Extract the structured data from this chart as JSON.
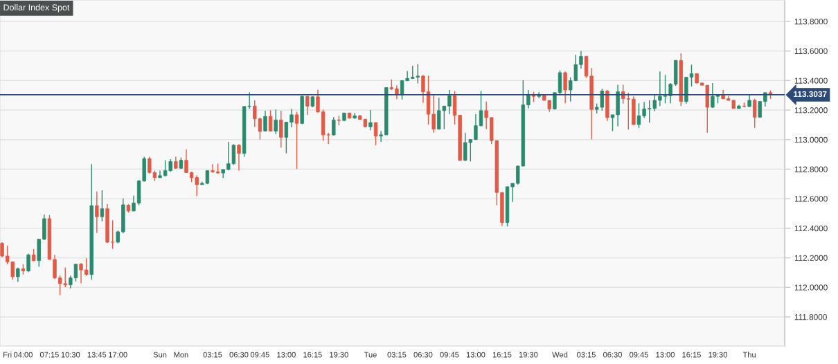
{
  "chart_data": {
    "type": "candlestick",
    "title": "Dollar Index Spot",
    "categories": [
      null,
      "Fri",
      null,
      null,
      "04:00",
      null,
      null,
      null,
      null,
      "07:15",
      null,
      null,
      null,
      "10:30",
      null,
      null,
      null,
      null,
      "13:45",
      null,
      null,
      null,
      "17:00",
      null,
      null,
      null,
      null,
      null,
      null,
      null,
      "Sun",
      null,
      null,
      null,
      "Mon",
      null,
      null,
      null,
      null,
      null,
      "03:15",
      null,
      null,
      null,
      null,
      "06:30",
      null,
      null,
      null,
      "09:45",
      null,
      null,
      null,
      null,
      "13:00",
      null,
      null,
      null,
      null,
      "16:15",
      null,
      null,
      null,
      null,
      "19:30",
      null,
      null,
      null,
      null,
      null,
      "Tue",
      null,
      null,
      null,
      null,
      "03:15",
      null,
      null,
      null,
      null,
      "06:30",
      null,
      null,
      null,
      null,
      "09:45",
      null,
      null,
      null,
      null,
      "13:00",
      null,
      null,
      null,
      null,
      "16:15",
      null,
      null,
      null,
      null,
      "19:30",
      null,
      null,
      null,
      null,
      null,
      "Wed",
      null,
      null,
      null,
      null,
      "03:15",
      null,
      null,
      null,
      null,
      "06:30",
      null,
      null,
      null,
      null,
      "09:45",
      null,
      null,
      null,
      null,
      "13:00",
      null,
      null,
      null,
      null,
      "16:15",
      null,
      null,
      null,
      null,
      "19:30",
      null,
      null,
      null,
      null,
      null,
      "Thu",
      null,
      null,
      null,
      null
    ],
    "ohlc": [
      [
        112.298,
        112.306,
        112.204,
        112.212
      ],
      [
        112.212,
        112.282,
        112.157,
        112.173
      ],
      [
        112.173,
        112.173,
        112.053,
        112.072
      ],
      [
        112.072,
        112.134,
        112.037,
        112.126
      ],
      [
        112.126,
        112.157,
        112.087,
        112.111
      ],
      [
        112.111,
        112.228,
        112.103,
        112.22
      ],
      [
        112.22,
        112.259,
        112.178,
        112.181
      ],
      [
        112.181,
        112.326,
        112.139,
        112.326
      ],
      [
        112.326,
        112.493,
        112.32,
        112.465
      ],
      [
        112.465,
        112.489,
        112.189,
        112.189
      ],
      [
        112.189,
        112.22,
        112.056,
        112.064
      ],
      [
        112.064,
        112.08,
        111.947,
        112.025
      ],
      [
        112.025,
        112.134,
        112.001,
        112.017
      ],
      [
        112.017,
        112.08,
        111.993,
        112.064
      ],
      [
        112.064,
        112.157,
        112.04,
        112.157
      ],
      [
        112.157,
        112.165,
        112.028,
        112.118
      ],
      [
        112.118,
        112.197,
        112.08,
        112.087
      ],
      [
        112.087,
        112.834,
        112.053,
        112.553
      ],
      [
        112.553,
        112.649,
        112.368,
        112.478
      ],
      [
        112.478,
        112.657,
        112.446,
        112.532
      ],
      [
        112.532,
        112.563,
        112.3,
        112.306
      ],
      [
        112.306,
        112.454,
        112.262,
        112.306
      ],
      [
        112.306,
        112.384,
        112.298,
        112.376
      ],
      [
        112.376,
        112.602,
        112.365,
        112.559
      ],
      [
        112.556,
        112.563,
        112.506,
        112.517
      ],
      [
        112.517,
        112.621,
        112.515,
        112.571
      ],
      [
        112.571,
        112.727,
        112.556,
        112.72
      ],
      [
        112.72,
        112.884,
        112.715,
        112.871
      ],
      [
        112.871,
        112.884,
        112.771,
        112.777
      ],
      [
        112.777,
        112.79,
        112.72,
        112.743
      ],
      [
        112.743,
        112.79,
        112.74,
        112.756
      ],
      [
        112.756,
        112.86,
        112.751,
        112.79
      ],
      [
        112.79,
        112.868,
        112.782,
        112.852
      ],
      [
        112.852,
        112.884,
        112.802,
        112.806
      ],
      [
        112.806,
        112.879,
        112.802,
        112.86
      ],
      [
        112.86,
        112.935,
        112.774,
        112.777
      ],
      [
        112.777,
        112.782,
        112.712,
        112.743
      ],
      [
        112.743,
        112.759,
        112.618,
        112.696
      ],
      [
        112.696,
        112.715,
        112.693,
        112.704
      ],
      [
        112.704,
        112.79,
        112.699,
        112.79
      ],
      [
        112.79,
        112.834,
        112.777,
        112.782
      ],
      [
        112.782,
        112.837,
        112.771,
        112.774
      ],
      [
        112.774,
        112.798,
        112.74,
        112.798
      ],
      [
        112.798,
        112.985,
        112.793,
        112.837
      ],
      [
        112.837,
        112.969,
        112.829,
        112.962
      ],
      [
        112.962,
        112.969,
        112.79,
        112.907
      ],
      [
        112.907,
        113.227,
        112.884,
        113.224
      ],
      [
        113.224,
        113.321,
        113.208,
        113.227
      ],
      [
        113.227,
        113.266,
        113.087,
        113.141
      ],
      [
        113.141,
        113.149,
        113.001,
        113.055
      ],
      [
        113.058,
        113.196,
        113.055,
        113.157
      ],
      [
        113.157,
        113.199,
        113.055,
        113.058
      ],
      [
        113.058,
        113.204,
        113.037,
        113.133
      ],
      [
        113.133,
        113.196,
        112.946,
        113.016
      ],
      [
        113.016,
        113.118,
        112.907,
        113.118
      ],
      [
        113.118,
        113.208,
        113.083,
        113.168
      ],
      [
        113.168,
        113.188,
        112.802,
        113.11
      ],
      [
        113.11,
        113.297,
        113.105,
        113.293
      ],
      [
        113.293,
        113.297,
        113.168,
        113.227
      ],
      [
        113.227,
        113.293,
        113.219,
        113.29
      ],
      [
        113.29,
        113.339,
        113.183,
        113.188
      ],
      [
        113.188,
        113.204,
        112.993,
        113.032
      ],
      [
        113.032,
        113.047,
        112.969,
        113.032
      ],
      [
        113.032,
        113.152,
        113.027,
        113.133
      ],
      [
        113.133,
        113.161,
        113.097,
        113.13
      ],
      [
        113.13,
        113.18,
        113.124,
        113.18
      ],
      [
        113.18,
        113.183,
        113.143,
        113.146
      ],
      [
        113.146,
        113.18,
        113.14,
        113.161
      ],
      [
        113.161,
        113.168,
        113.133,
        113.137
      ],
      [
        113.137,
        113.141,
        113.083,
        113.087
      ],
      [
        113.087,
        113.2,
        113.063,
        113.115
      ],
      [
        113.115,
        113.118,
        112.962,
        113.024
      ],
      [
        113.024,
        113.058,
        112.985,
        113.032
      ],
      [
        113.032,
        113.355,
        113.03,
        113.352
      ],
      [
        113.352,
        113.407,
        113.336,
        113.344
      ],
      [
        113.344,
        113.368,
        113.274,
        113.302
      ],
      [
        113.302,
        113.402,
        113.271,
        113.399
      ],
      [
        113.399,
        113.464,
        113.396,
        113.414
      ],
      [
        113.414,
        113.5,
        113.411,
        113.422
      ],
      [
        113.422,
        113.511,
        113.38,
        113.43
      ],
      [
        113.43,
        113.438,
        113.25,
        113.324
      ],
      [
        113.324,
        113.433,
        113.102,
        113.172
      ],
      [
        113.172,
        113.305,
        113.047,
        113.071
      ],
      [
        113.071,
        113.282,
        113.068,
        113.196
      ],
      [
        113.196,
        113.227,
        113.071,
        113.227
      ],
      [
        113.227,
        113.336,
        113.172,
        113.297
      ],
      [
        113.297,
        113.329,
        113.102,
        113.165
      ],
      [
        113.165,
        113.168,
        112.855,
        112.86
      ],
      [
        112.86,
        113.047,
        112.855,
        112.98
      ],
      [
        112.98,
        113.001,
        112.852,
        113.001
      ],
      [
        113.001,
        113.172,
        112.996,
        113.094
      ],
      [
        113.094,
        113.329,
        113.09,
        113.196
      ],
      [
        113.196,
        113.258,
        113.071,
        113.149
      ],
      [
        113.149,
        113.152,
        112.969,
        112.993
      ],
      [
        112.993,
        112.996,
        112.556,
        112.642
      ],
      [
        112.642,
        112.642,
        112.415,
        112.439
      ],
      [
        112.439,
        112.681,
        112.412,
        112.681
      ],
      [
        112.681,
        112.706,
        112.579,
        112.704
      ],
      [
        112.704,
        112.824,
        112.696,
        112.821
      ],
      [
        112.821,
        113.402,
        112.818,
        113.235
      ],
      [
        113.235,
        113.336,
        113.211,
        113.305
      ],
      [
        113.305,
        113.324,
        113.255,
        113.293
      ],
      [
        113.293,
        113.321,
        113.28,
        113.302
      ],
      [
        113.302,
        113.308,
        113.263,
        113.266
      ],
      [
        113.266,
        113.266,
        113.188,
        113.208
      ],
      [
        113.208,
        113.321,
        113.204,
        113.318
      ],
      [
        113.318,
        113.469,
        113.302,
        113.453
      ],
      [
        113.453,
        113.461,
        113.246,
        113.336
      ],
      [
        113.336,
        113.422,
        113.258,
        113.399
      ],
      [
        113.399,
        113.574,
        113.396,
        113.508
      ],
      [
        113.508,
        113.599,
        113.48,
        113.563
      ],
      [
        113.563,
        113.567,
        113.418,
        113.43
      ],
      [
        113.43,
        113.485,
        113.001,
        113.204
      ],
      [
        113.204,
        113.243,
        113.177,
        113.219
      ],
      [
        113.219,
        113.344,
        113.196,
        113.329
      ],
      [
        113.329,
        113.336,
        113.126,
        113.149
      ],
      [
        113.149,
        113.168,
        113.058,
        113.168
      ],
      [
        113.168,
        113.371,
        113.09,
        113.324
      ],
      [
        113.324,
        113.371,
        113.243,
        113.277
      ],
      [
        113.277,
        113.318,
        113.068,
        113.274
      ],
      [
        113.274,
        113.293,
        113.099,
        113.102
      ],
      [
        113.102,
        113.246,
        113.079,
        113.161
      ],
      [
        113.161,
        113.255,
        113.146,
        113.208
      ],
      [
        113.208,
        113.266,
        113.115,
        113.211
      ],
      [
        113.211,
        113.302,
        113.193,
        113.266
      ],
      [
        113.266,
        113.461,
        113.227,
        113.293
      ],
      [
        113.293,
        113.438,
        113.246,
        113.297
      ],
      [
        113.297,
        113.383,
        113.246,
        113.375
      ],
      [
        113.375,
        113.539,
        113.364,
        113.536
      ],
      [
        113.536,
        113.586,
        113.227,
        113.258
      ],
      [
        113.258,
        113.422,
        113.243,
        113.422
      ],
      [
        113.422,
        113.508,
        113.36,
        113.446
      ],
      [
        113.446,
        113.449,
        113.38,
        113.383
      ],
      [
        113.383,
        113.386,
        113.368,
        113.368
      ],
      [
        113.368,
        113.368,
        113.047,
        113.219
      ],
      [
        113.219,
        113.383,
        113.214,
        113.293
      ],
      [
        113.293,
        113.305,
        113.246,
        113.305
      ],
      [
        113.305,
        113.336,
        113.274,
        113.277
      ],
      [
        113.277,
        113.296,
        113.263,
        113.266
      ],
      [
        113.266,
        113.269,
        113.208,
        113.211
      ],
      [
        113.211,
        113.235,
        113.208,
        113.227
      ],
      [
        113.227,
        113.251,
        113.221,
        113.224
      ],
      [
        113.224,
        113.308,
        113.221,
        113.266
      ],
      [
        113.266,
        113.277,
        113.079,
        113.152
      ],
      [
        113.152,
        113.261,
        113.149,
        113.258
      ],
      [
        113.258,
        113.318,
        113.224,
        113.318
      ],
      [
        113.318,
        113.333,
        113.277,
        113.304
      ]
    ],
    "colors": [
      "#e05a46",
      "#e05a46",
      "#e05a46",
      "#2a8a6e",
      "#e05a46",
      "#2a8a6e",
      "#e05a46",
      "#2a8a6e",
      "#2a8a6e",
      "#e05a46",
      "#e05a46",
      "#e05a46",
      "#e05a46",
      "#2a8a6e",
      "#2a8a6e",
      "#e05a46",
      "#e05a46",
      "#2a8a6e",
      "#e05a46",
      "#2a8a6e",
      "#e05a46",
      "#e05a46",
      "#2a8a6e",
      "#2a8a6e",
      "#e05a46",
      "#2a8a6e",
      "#2a8a6e",
      "#2a8a6e",
      "#e05a46",
      "#e05a46",
      "#2a8a6e",
      "#2a8a6e",
      "#2a8a6e",
      "#e05a46",
      "#2a8a6e",
      "#e05a46",
      "#e05a46",
      "#e05a46",
      "#2a8a6e",
      "#2a8a6e",
      "#e05a46",
      "#e05a46",
      "#2a8a6e",
      "#2a8a6e",
      "#2a8a6e",
      "#e05a46",
      "#2a8a6e",
      "#2a8a6e",
      "#e05a46",
      "#e05a46",
      "#2a8a6e",
      "#e05a46",
      "#2a8a6e",
      "#e05a46",
      "#2a8a6e",
      "#2a8a6e",
      "#e05a46",
      "#2a8a6e",
      "#e05a46",
      "#2a8a6e",
      "#e05a46",
      "#e05a46",
      "#e05a46",
      "#2a8a6e",
      "#e05a46",
      "#2a8a6e",
      "#e05a46",
      "#2a8a6e",
      "#e05a46",
      "#e05a46",
      "#2a8a6e",
      "#e05a46",
      "#2a8a6e",
      "#2a8a6e",
      "#e05a46",
      "#e05a46",
      "#2a8a6e",
      "#2a8a6e",
      "#2a8a6e",
      "#2a8a6e",
      "#e05a46",
      "#e05a46",
      "#e05a46",
      "#2a8a6e",
      "#2a8a6e",
      "#2a8a6e",
      "#e05a46",
      "#e05a46",
      "#2a8a6e",
      "#2a8a6e",
      "#2a8a6e",
      "#2a8a6e",
      "#e05a46",
      "#e05a46",
      "#e05a46",
      "#e05a46",
      "#2a8a6e",
      "#2a8a6e",
      "#2a8a6e",
      "#2a8a6e",
      "#2a8a6e",
      "#e05a46",
      "#2a8a6e",
      "#e05a46",
      "#e05a46",
      "#2a8a6e",
      "#2a8a6e",
      "#e05a46",
      "#2a8a6e",
      "#2a8a6e",
      "#2a8a6e",
      "#e05a46",
      "#e05a46",
      "#2a8a6e",
      "#2a8a6e",
      "#e05a46",
      "#2a8a6e",
      "#2a8a6e",
      "#e05a46",
      "#e05a46",
      "#e05a46",
      "#2a8a6e",
      "#2a8a6e",
      "#2a8a6e",
      "#2a8a6e",
      "#2a8a6e",
      "#2a8a6e",
      "#2a8a6e",
      "#2a8a6e",
      "#e05a46",
      "#2a8a6e",
      "#2a8a6e",
      "#e05a46",
      "#e05a46",
      "#e05a46",
      "#2a8a6e",
      "#2a8a6e",
      "#e05a46",
      "#e05a46",
      "#e05a46",
      "#2a8a6e",
      "#e05a46",
      "#2a8a6e",
      "#e05a46",
      "#2a8a6e",
      "#2a8a6e",
      "#e05a46"
    ],
    "ylim": [
      111.603,
      113.945
    ],
    "yticks": [
      {
        "value": 111.8,
        "label": "111.8000"
      },
      {
        "value": 112.0,
        "label": "112.0000"
      },
      {
        "value": 112.2,
        "label": "112.2000"
      },
      {
        "value": 112.4,
        "label": "112.4000"
      },
      {
        "value": 112.6,
        "label": "112.6000"
      },
      {
        "value": 112.8,
        "label": "112.8000"
      },
      {
        "value": 113.0,
        "label": "113.0000"
      },
      {
        "value": 113.2,
        "label": "113.2000"
      },
      {
        "value": 113.4,
        "label": "113.4000"
      },
      {
        "value": 113.6,
        "label": "113.6000"
      },
      {
        "value": 113.8,
        "label": "113.8000"
      }
    ],
    "grid": "y",
    "ref_lines": [
      {
        "axis": "y",
        "value": 113.3037,
        "label": "113.3037",
        "color": "#2c4a78"
      }
    ]
  }
}
